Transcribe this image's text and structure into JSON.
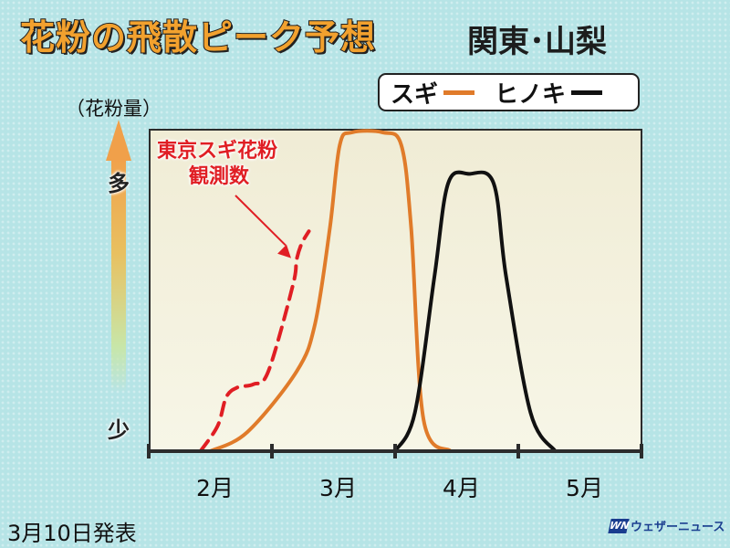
{
  "header": {
    "title": "花粉の飛散ピーク予想",
    "region": "関東･山梨"
  },
  "legend": {
    "items": [
      {
        "label": "スギ",
        "color": "#e07b2a"
      },
      {
        "label": "ヒノキ",
        "color": "#111111"
      }
    ]
  },
  "axis": {
    "y_unit_label": "（花粉量）",
    "y_high_label": "多",
    "y_low_label": "少"
  },
  "annotation": {
    "line1": "東京スギ花粉",
    "line2": "観測数",
    "color": "#e01e24"
  },
  "footer": {
    "date": "3月10日発表",
    "brand": "ウェザーニュース",
    "brand_mark": "WN"
  },
  "chart_data": {
    "type": "line",
    "x_type": "month",
    "categories": [
      "2月",
      "3月",
      "4月",
      "5月"
    ],
    "xlim": [
      1.5,
      5.5
    ],
    "ylim": [
      0,
      100
    ],
    "y_scale": "qualitative (少 to 多)",
    "grid": false,
    "legend_position": "top-right",
    "series": [
      {
        "name": "スギ",
        "style": "solid",
        "color": "#e07b2a",
        "points": [
          [
            2.0,
            0
          ],
          [
            2.3,
            6
          ],
          [
            2.7,
            25
          ],
          [
            2.85,
            40
          ],
          [
            2.97,
            70
          ],
          [
            3.05,
            96
          ],
          [
            3.15,
            100
          ],
          [
            3.4,
            100
          ],
          [
            3.55,
            96
          ],
          [
            3.63,
            70
          ],
          [
            3.73,
            10
          ],
          [
            3.95,
            0
          ]
        ]
      },
      {
        "name": "ヒノキ",
        "style": "solid",
        "color": "#111111",
        "points": [
          [
            3.5,
            0
          ],
          [
            3.66,
            12
          ],
          [
            3.82,
            55
          ],
          [
            3.93,
            84
          ],
          [
            4.1,
            87
          ],
          [
            4.3,
            84
          ],
          [
            4.4,
            55
          ],
          [
            4.6,
            12
          ],
          [
            4.8,
            0
          ]
        ]
      },
      {
        "name": "東京スギ花粉 観測数",
        "style": "dashed",
        "color": "#e01e24",
        "points": [
          [
            1.92,
            0
          ],
          [
            2.06,
            8
          ],
          [
            2.13,
            17
          ],
          [
            2.22,
            20
          ],
          [
            2.35,
            21
          ],
          [
            2.47,
            25
          ],
          [
            2.67,
            52
          ],
          [
            2.7,
            60
          ],
          [
            2.74,
            65
          ],
          [
            2.8,
            69
          ]
        ]
      }
    ]
  }
}
